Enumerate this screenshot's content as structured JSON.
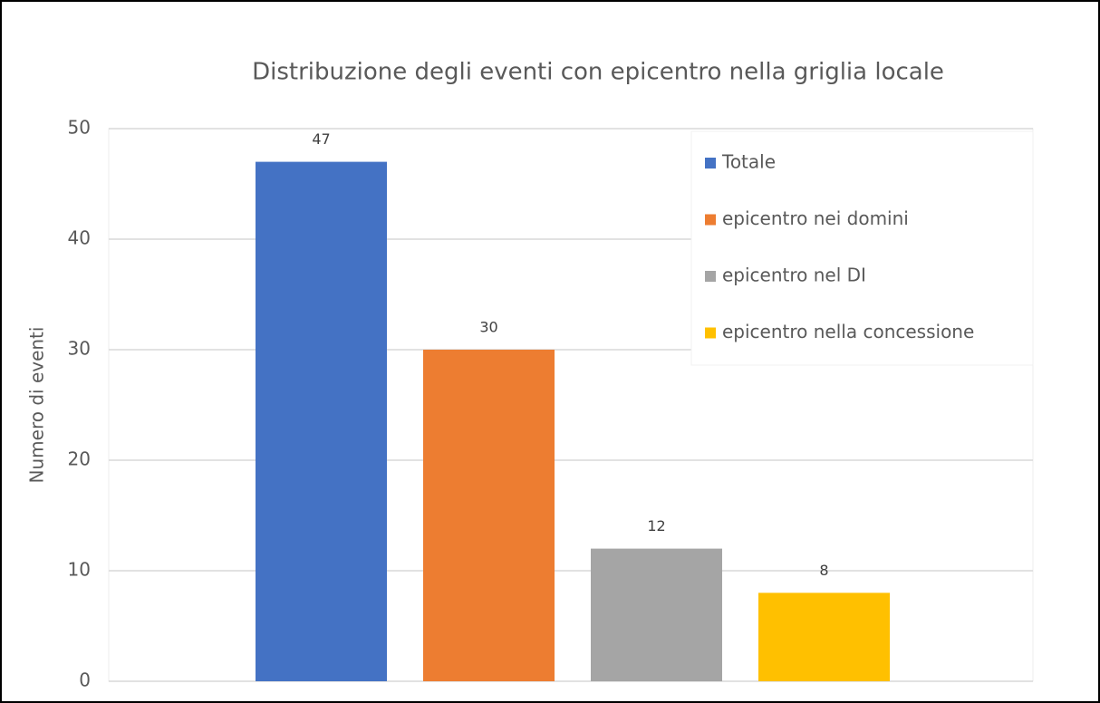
{
  "chart_data": {
    "type": "bar",
    "title": "Distribuzione degli eventi con epicentro nella griglia locale",
    "y_label": "Numero di eventi",
    "categories": [
      null
    ],
    "series": [
      {
        "name": "Totale",
        "color": "#4472c4",
        "values": [
          47
        ]
      },
      {
        "name": "epicentro nei domini",
        "color": "#ed7d31",
        "values": [
          30
        ]
      },
      {
        "name": "epicentro nel DI",
        "color": "#a5a5a5",
        "values": [
          12
        ]
      },
      {
        "name": "epicentro nella concessione",
        "color": "#ffc000",
        "values": [
          8
        ]
      }
    ],
    "ylim": [
      0,
      50
    ],
    "yticks": [
      0,
      10,
      20,
      30,
      40,
      50
    ],
    "grid": true,
    "legend": "upper right"
  }
}
